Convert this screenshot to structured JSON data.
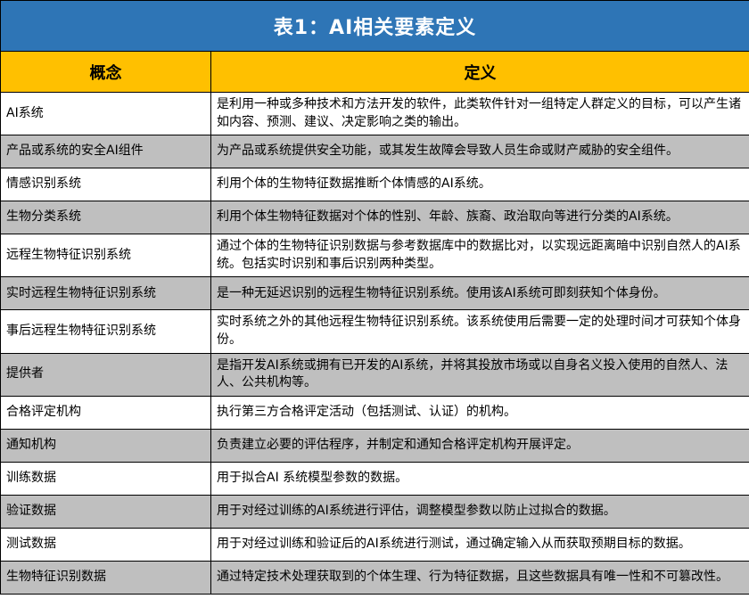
{
  "table": {
    "title": "表1：AI相关要素定义",
    "columns": [
      "概念",
      "定义"
    ],
    "rows": [
      {
        "concept": "AI系统",
        "definition": "是利用一种或多种技术和方法开发的软件，此类软件针对一组特定人群定义的目标，可以产生诸如内容、预测、建议、决定影响之类的输出。"
      },
      {
        "concept": "产品或系统的安全AI组件",
        "definition": "为产品或系统提供安全功能，或其发生故障会导致人员生命或财产威胁的安全组件。"
      },
      {
        "concept": "情感识别系统",
        "definition": "利用个体的生物特征数据推断个体情感的AI系统。"
      },
      {
        "concept": "生物分类系统",
        "definition": "利用个体生物特征数据对个体的性别、年龄、族裔、政治取向等进行分类的AI系统。"
      },
      {
        "concept": "远程生物特征识别系统",
        "definition": "通过个体的生物特征识别数据与参考数据库中的数据比对，以实现远距离暗中识别自然人的AI系统。包括实时识别和事后识别两种类型。"
      },
      {
        "concept": "实时远程生物特征识别系统",
        "definition": "是一种无延迟识别的远程生物特征识别系统。使用该AI系统可即刻获知个体身份。"
      },
      {
        "concept": "事后远程生物特征识别系统",
        "definition": "实时系统之外的其他远程生物特征识别系统。该系统使用后需要一定的处理时间才可获知个体身份。"
      },
      {
        "concept": "提供者",
        "definition": "是指开发AI系统或拥有已开发的AI系统，并将其投放市场或以自身名义投入使用的自然人、法人、公共机构等。"
      },
      {
        "concept": "合格评定机构",
        "definition": "执行第三方合格评定活动（包括测试、认证）的机构。"
      },
      {
        "concept": "通知机构",
        "definition": "负责建立必要的评估程序，并制定和通知合格评定机构开展评定。"
      },
      {
        "concept": "训练数据",
        "definition": "用于拟合AI 系统模型参数的数据。"
      },
      {
        "concept": "验证数据",
        "definition": "用于对经过训练的AI系统进行评估，调整模型参数以防止过拟合的数据。"
      },
      {
        "concept": "测试数据",
        "definition": "用于对经过训练和验证后的AI系统进行测试，通过确定输入从而获取预期目标的数据。"
      },
      {
        "concept": "生物特征识别数据",
        "definition": "通过特定技术处理获取到的个体生理、行为特征数据，且这些数据具有唯一性和不可篡改性。"
      }
    ]
  },
  "colors": {
    "title_bg": "#2e75b6",
    "title_text": "#ffffff",
    "header_bg": "#ffc000",
    "header_text": "#000000",
    "row_bg": "#ffffff",
    "row_alt_bg": "#bfbfbf",
    "border_color": "#000000",
    "body_text": "#000000"
  }
}
